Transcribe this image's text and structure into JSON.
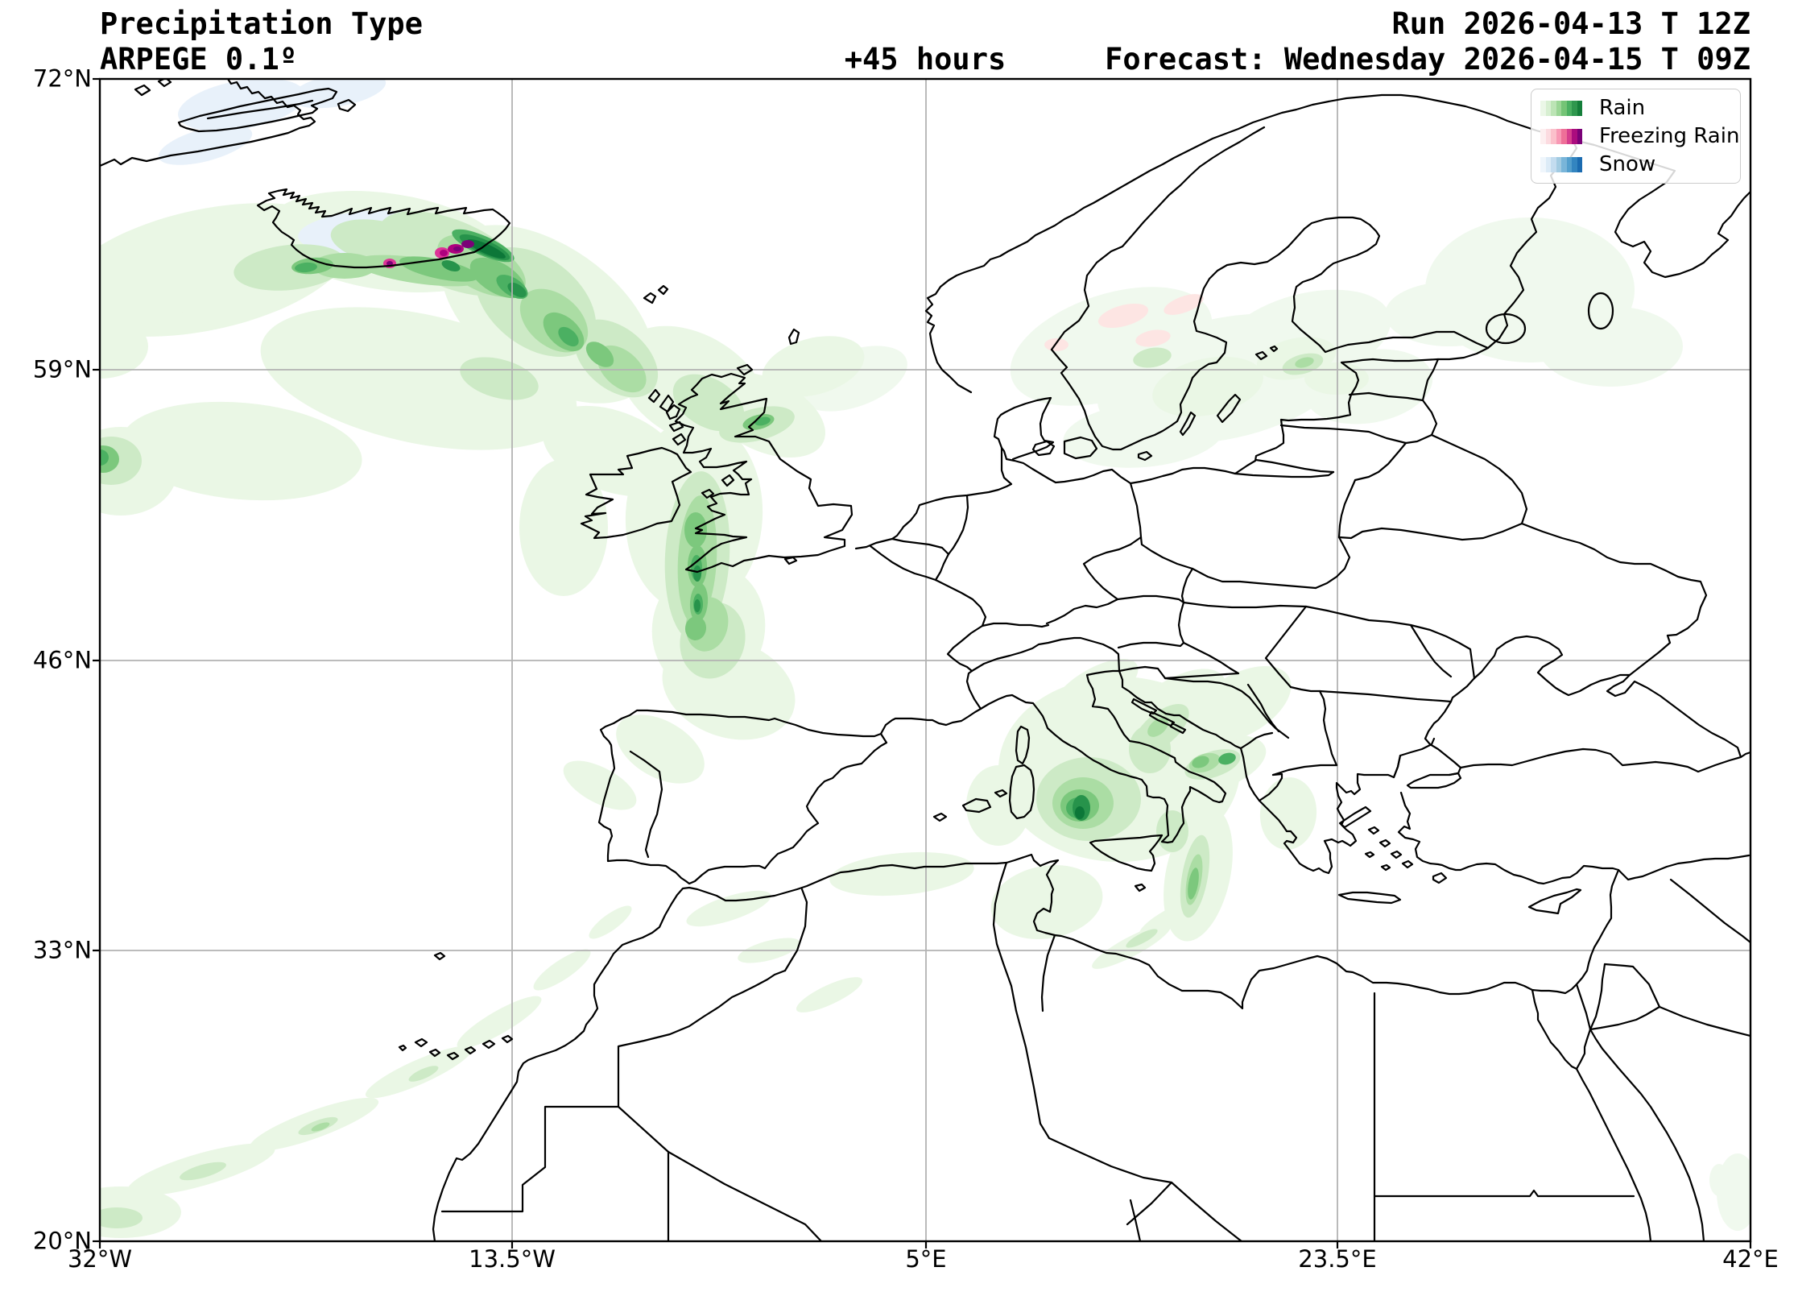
{
  "header": {
    "title_line1": "Precipitation Type",
    "title_line2": "ARPEGE 0.1º",
    "lead_time": "+45 hours",
    "run_label": "Run 2026-04-13 T 12Z",
    "forecast_label": "Forecast: Wednesday 2026-04-15 T 09Z"
  },
  "axes": {
    "y_ticks": [
      "72°N",
      "59°N",
      "46°N",
      "33°N",
      "20°N"
    ],
    "x_ticks": [
      "32°W",
      "13.5°W",
      "5°E",
      "23.5°E",
      "42°E"
    ]
  },
  "legend": {
    "items": [
      {
        "label": "Rain",
        "colors": [
          "#ebf7e7",
          "#d7efd1",
          "#bce4b5",
          "#9bd696",
          "#74c476",
          "#4bb062",
          "#2f974e",
          "#147e3a"
        ]
      },
      {
        "label": "Freezing Rain",
        "colors": [
          "#fdeff0",
          "#fcdbe0",
          "#fbc0cb",
          "#f899b5",
          "#ee7098",
          "#d63f8d",
          "#ab0c7e",
          "#7a0177"
        ]
      },
      {
        "label": "Snow",
        "colors": [
          "#eff6fc",
          "#dcebf7",
          "#c3dcef",
          "#a2cbe2",
          "#79b5d9",
          "#549fcd",
          "#3385c0",
          "#1b6bb0"
        ]
      }
    ]
  },
  "map": {
    "extent": {
      "lon_min": -32,
      "lon_max": 42,
      "lat_min": 20,
      "lat_max": 72
    },
    "grid_color": "#b2b2b2",
    "coast_color": "#000000",
    "precip_regions": [
      "North Atlantic rain band from Iceland toward Scotland",
      "Freezing rain and snow over Iceland",
      "Rain band over Irish Sea, Wales and Cornwall into Biscay",
      "Rain over Tyrrhenian Sea, Apennines, Puglia and Ionian Sea",
      "Light rain streaks over Morocco / Atlas and Tunisia-Libya",
      "Very light rain over southern Scandinavia and Baltic",
      "Small rain cell at west edge near 46N"
    ]
  }
}
